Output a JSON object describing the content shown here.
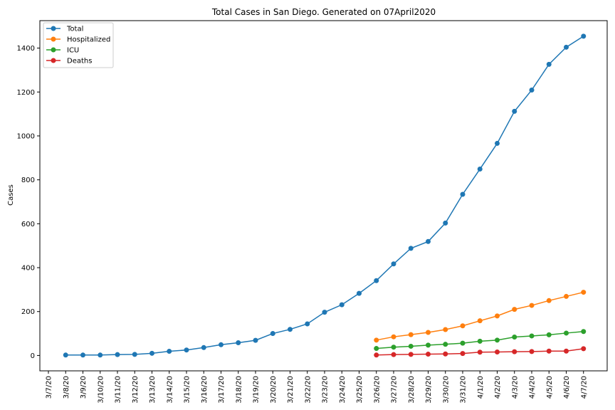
{
  "chart_data": {
    "type": "line",
    "title": "Total Cases in San Diego. Generated on 07April2020",
    "xlabel": "",
    "ylabel": "Cases",
    "ylim": [
      -70,
      1525
    ],
    "yticks": [
      0,
      200,
      400,
      600,
      800,
      1000,
      1200,
      1400
    ],
    "grid": false,
    "legend_position": "upper-left",
    "categories": [
      "3/7/20",
      "3/8/20",
      "3/9/20",
      "3/10/20",
      "3/11/20",
      "3/12/20",
      "3/13/20",
      "3/14/20",
      "3/15/20",
      "3/16/20",
      "3/17/20",
      "3/18/20",
      "3/19/20",
      "3/20/20",
      "3/21/20",
      "3/22/20",
      "3/23/20",
      "3/24/20",
      "3/25/20",
      "3/26/20",
      "3/27/20",
      "3/28/20",
      "3/29/20",
      "3/30/20",
      "3/31/20",
      "4/1/20",
      "4/2/20",
      "4/3/20",
      "4/4/20",
      "4/5/20",
      "4/6/20",
      "4/7/20"
    ],
    "series": [
      {
        "name": "Total",
        "color": "#1f77b4",
        "values": [
          null,
          2,
          2,
          2,
          4,
          5,
          10,
          19,
          25,
          36,
          49,
          58,
          69,
          100,
          119,
          144,
          197,
          231,
          283,
          341,
          417,
          488,
          519,
          603,
          734,
          849,
          966,
          1112,
          1209,
          1326,
          1404,
          1454
        ]
      },
      {
        "name": "Hospitalized",
        "color": "#ff7f0e",
        "values": [
          null,
          null,
          null,
          null,
          null,
          null,
          null,
          null,
          null,
          null,
          null,
          null,
          null,
          null,
          null,
          null,
          null,
          null,
          null,
          70,
          85,
          95,
          105,
          118,
          135,
          158,
          180,
          210,
          228,
          250,
          269,
          288
        ]
      },
      {
        "name": "ICU",
        "color": "#2ca02c",
        "values": [
          null,
          null,
          null,
          null,
          null,
          null,
          null,
          null,
          null,
          null,
          null,
          null,
          null,
          null,
          null,
          null,
          null,
          null,
          null,
          32,
          38,
          42,
          47,
          51,
          56,
          65,
          70,
          84,
          89,
          94,
          102,
          109
        ]
      },
      {
        "name": "Deaths",
        "color": "#d62728",
        "values": [
          null,
          null,
          null,
          null,
          null,
          null,
          null,
          null,
          null,
          null,
          null,
          null,
          null,
          null,
          null,
          null,
          null,
          null,
          null,
          2,
          4,
          5,
          6,
          7,
          9,
          15,
          16,
          17,
          18,
          20,
          20,
          31
        ]
      }
    ]
  }
}
